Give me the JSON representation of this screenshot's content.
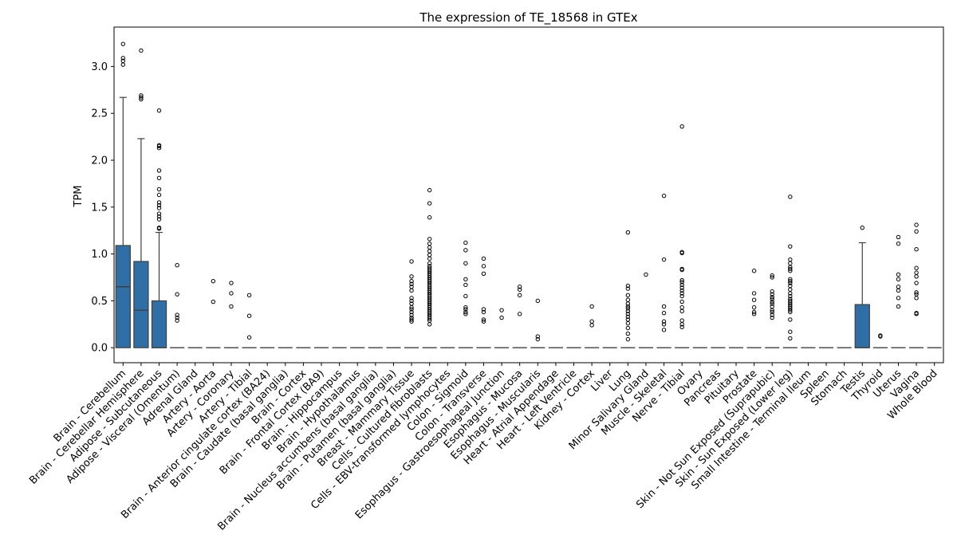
{
  "chart_data": {
    "type": "box",
    "title": "The expression of TE_18568 in GTEx",
    "xlabel": "",
    "ylabel": "TPM",
    "ylim": [
      -0.16,
      3.42
    ],
    "yticks": [
      0.0,
      0.5,
      1.0,
      1.5,
      2.0,
      2.5,
      3.0
    ],
    "ytick_labels": [
      "0.0",
      "0.5",
      "1.0",
      "1.5",
      "2.0",
      "2.5",
      "3.0"
    ],
    "box_color": "#2f6fa5",
    "categories": [
      "Brain - Cerebellum",
      "Brain - Cerebellar Hemisphere",
      "Adipose - Subcutaneous",
      "Adipose - Visceral (Omentum)",
      "Adrenal Gland",
      "Artery - Aorta",
      "Artery - Coronary",
      "Artery - Tibial",
      "Brain - Anterior cingulate cortex (BA24)",
      "Brain - Caudate (basal ganglia)",
      "Brain - Cortex",
      "Brain - Frontal Cortex (BA9)",
      "Brain - Hippocampus",
      "Brain - Hypothalamus",
      "Brain - Nucleus accumbens (basal ganglia)",
      "Brain - Putamen (basal ganglia)",
      "Breast - Mammary Tissue",
      "Cells - Cultured fibroblasts",
      "Cells - EBV-transformed lymphocytes",
      "Colon - Sigmoid",
      "Colon - Transverse",
      "Esophagus - Gastroesophageal Junction",
      "Esophagus - Mucosa",
      "Esophagus - Muscularis",
      "Heart - Atrial Appendage",
      "Heart - Left Ventricle",
      "Kidney - Cortex",
      "Liver",
      "Lung",
      "Minor Salivary Gland",
      "Muscle - Skeletal",
      "Nerve - Tibial",
      "Ovary",
      "Pancreas",
      "Pituitary",
      "Prostate",
      "Skin - Not Sun Exposed (Suprapubic)",
      "Skin - Sun Exposed (Lower leg)",
      "Small Intestine - Terminal Ileum",
      "Spleen",
      "Stomach",
      "Testis",
      "Thyroid",
      "Uterus",
      "Vagina",
      "Whole Blood"
    ],
    "boxes": [
      {
        "q1": 0,
        "median": 0.65,
        "q3": 1.09,
        "whisker_low": 0,
        "whisker_high": 2.67,
        "outliers": [
          3.24,
          3.09,
          3.06,
          3.02
        ]
      },
      {
        "q1": 0,
        "median": 0.4,
        "q3": 0.92,
        "whisker_low": 0,
        "whisker_high": 2.23,
        "outliers": [
          3.17,
          2.69,
          2.67,
          2.65
        ]
      },
      {
        "q1": 0,
        "median": 0,
        "q3": 0.5,
        "whisker_low": 0,
        "whisker_high": 1.23,
        "outliers": [
          2.53,
          2.16,
          2.15,
          2.13,
          1.89,
          1.81,
          1.69,
          1.63,
          1.55,
          1.52,
          1.49,
          1.43,
          1.4,
          1.37,
          1.28,
          1.27
        ]
      },
      {
        "q1": 0,
        "median": 0,
        "q3": 0,
        "whisker_low": 0,
        "whisker_high": 0,
        "outliers": [
          0.88,
          0.57,
          0.35,
          0.32,
          0.29
        ]
      },
      {
        "q1": 0,
        "median": 0,
        "q3": 0,
        "whisker_low": 0,
        "whisker_high": 0,
        "outliers": []
      },
      {
        "q1": 0,
        "median": 0,
        "q3": 0,
        "whisker_low": 0,
        "whisker_high": 0,
        "outliers": [
          0.71,
          0.49
        ]
      },
      {
        "q1": 0,
        "median": 0,
        "q3": 0,
        "whisker_low": 0,
        "whisker_high": 0,
        "outliers": [
          0.69,
          0.58,
          0.44
        ]
      },
      {
        "q1": 0,
        "median": 0,
        "q3": 0,
        "whisker_low": 0,
        "whisker_high": 0,
        "outliers": [
          0.56,
          0.34,
          0.11
        ]
      },
      {
        "q1": 0,
        "median": 0,
        "q3": 0,
        "whisker_low": 0,
        "whisker_high": 0,
        "outliers": []
      },
      {
        "q1": 0,
        "median": 0,
        "q3": 0,
        "whisker_low": 0,
        "whisker_high": 0,
        "outliers": []
      },
      {
        "q1": 0,
        "median": 0,
        "q3": 0,
        "whisker_low": 0,
        "whisker_high": 0,
        "outliers": []
      },
      {
        "q1": 0,
        "median": 0,
        "q3": 0,
        "whisker_low": 0,
        "whisker_high": 0,
        "outliers": []
      },
      {
        "q1": 0,
        "median": 0,
        "q3": 0,
        "whisker_low": 0,
        "whisker_high": 0,
        "outliers": []
      },
      {
        "q1": 0,
        "median": 0,
        "q3": 0,
        "whisker_low": 0,
        "whisker_high": 0,
        "outliers": []
      },
      {
        "q1": 0,
        "median": 0,
        "q3": 0,
        "whisker_low": 0,
        "whisker_high": 0,
        "outliers": []
      },
      {
        "q1": 0,
        "median": 0,
        "q3": 0,
        "whisker_low": 0,
        "whisker_high": 0,
        "outliers": []
      },
      {
        "q1": 0,
        "median": 0,
        "q3": 0,
        "whisker_low": 0,
        "whisker_high": 0,
        "outliers": [
          0.92,
          0.76,
          0.71,
          0.68,
          0.65,
          0.61,
          0.53,
          0.5,
          0.47,
          0.43,
          0.41,
          0.38,
          0.35,
          0.32,
          0.3,
          0.28
        ]
      },
      {
        "q1": 0,
        "median": 0,
        "q3": 0,
        "whisker_low": 0,
        "whisker_high": 0,
        "outliers": [
          1.68,
          1.54,
          1.39,
          1.16,
          1.11,
          1.07,
          1.03,
          0.99,
          0.95,
          0.9,
          0.87,
          0.85,
          0.83,
          0.81,
          0.79,
          0.77,
          0.75,
          0.73,
          0.71,
          0.69,
          0.67,
          0.65,
          0.63,
          0.61,
          0.59,
          0.57,
          0.55,
          0.53,
          0.51,
          0.49,
          0.47,
          0.45,
          0.43,
          0.41,
          0.39,
          0.37,
          0.35,
          0.33,
          0.31,
          0.29,
          0.25
        ]
      },
      {
        "q1": 0,
        "median": 0,
        "q3": 0,
        "whisker_low": 0,
        "whisker_high": 0,
        "outliers": []
      },
      {
        "q1": 0,
        "median": 0,
        "q3": 0,
        "whisker_low": 0,
        "whisker_high": 0,
        "outliers": [
          1.12,
          1.04,
          0.9,
          0.73,
          0.67,
          0.55,
          0.43,
          0.41,
          0.38,
          0.36
        ]
      },
      {
        "q1": 0,
        "median": 0,
        "q3": 0,
        "whisker_low": 0,
        "whisker_high": 0,
        "outliers": [
          0.95,
          0.87,
          0.79,
          0.41,
          0.38,
          0.3,
          0.28
        ]
      },
      {
        "q1": 0,
        "median": 0,
        "q3": 0,
        "whisker_low": 0,
        "whisker_high": 0,
        "outliers": [
          0.4,
          0.32
        ]
      },
      {
        "q1": 0,
        "median": 0,
        "q3": 0,
        "whisker_low": 0,
        "whisker_high": 0,
        "outliers": [
          0.65,
          0.62,
          0.56,
          0.36
        ]
      },
      {
        "q1": 0,
        "median": 0,
        "q3": 0,
        "whisker_low": 0,
        "whisker_high": 0,
        "outliers": [
          0.5,
          0.12,
          0.09
        ]
      },
      {
        "q1": 0,
        "median": 0,
        "q3": 0,
        "whisker_low": 0,
        "whisker_high": 0,
        "outliers": []
      },
      {
        "q1": 0,
        "median": 0,
        "q3": 0,
        "whisker_low": 0,
        "whisker_high": 0,
        "outliers": []
      },
      {
        "q1": 0,
        "median": 0,
        "q3": 0,
        "whisker_low": 0,
        "whisker_high": 0,
        "outliers": [
          0.44,
          0.28,
          0.24
        ]
      },
      {
        "q1": 0,
        "median": 0,
        "q3": 0,
        "whisker_low": 0,
        "whisker_high": 0,
        "outliers": []
      },
      {
        "q1": 0,
        "median": 0,
        "q3": 0,
        "whisker_low": 0,
        "whisker_high": 0,
        "outliers": [
          1.23,
          0.66,
          0.63,
          0.56,
          0.51,
          0.47,
          0.44,
          0.42,
          0.39,
          0.36,
          0.33,
          0.3,
          0.26,
          0.21,
          0.15,
          0.09
        ]
      },
      {
        "q1": 0,
        "median": 0,
        "q3": 0,
        "whisker_low": 0,
        "whisker_high": 0,
        "outliers": [
          0.78
        ]
      },
      {
        "q1": 0,
        "median": 0,
        "q3": 0,
        "whisker_low": 0,
        "whisker_high": 0,
        "outliers": [
          1.62,
          0.94,
          0.44,
          0.37,
          0.28,
          0.25,
          0.19
        ]
      },
      {
        "q1": 0,
        "median": 0,
        "q3": 0,
        "whisker_low": 0,
        "whisker_high": 0,
        "outliers": [
          2.36,
          1.02,
          1.01,
          0.84,
          0.83,
          0.72,
          0.7,
          0.67,
          0.64,
          0.61,
          0.58,
          0.55,
          0.49,
          0.43,
          0.39,
          0.29,
          0.25,
          0.22
        ]
      },
      {
        "q1": 0,
        "median": 0,
        "q3": 0,
        "whisker_low": 0,
        "whisker_high": 0,
        "outliers": []
      },
      {
        "q1": 0,
        "median": 0,
        "q3": 0,
        "whisker_low": 0,
        "whisker_high": 0,
        "outliers": []
      },
      {
        "q1": 0,
        "median": 0,
        "q3": 0,
        "whisker_low": 0,
        "whisker_high": 0,
        "outliers": []
      },
      {
        "q1": 0,
        "median": 0,
        "q3": 0,
        "whisker_low": 0,
        "whisker_high": 0,
        "outliers": [
          0.82,
          0.58,
          0.51,
          0.43,
          0.38,
          0.36
        ]
      },
      {
        "q1": 0,
        "median": 0,
        "q3": 0,
        "whisker_low": 0,
        "whisker_high": 0,
        "outliers": [
          0.77,
          0.75,
          0.6,
          0.57,
          0.54,
          0.52,
          0.49,
          0.47,
          0.44,
          0.4,
          0.38,
          0.35,
          0.32
        ]
      },
      {
        "q1": 0,
        "median": 0,
        "q3": 0,
        "whisker_low": 0,
        "whisker_high": 0,
        "outliers": [
          1.61,
          1.08,
          0.94,
          0.9,
          0.86,
          0.84,
          0.82,
          0.73,
          0.71,
          0.69,
          0.66,
          0.62,
          0.58,
          0.55,
          0.52,
          0.5,
          0.48,
          0.46,
          0.44,
          0.42,
          0.4,
          0.38,
          0.3,
          0.17,
          0.1
        ]
      },
      {
        "q1": 0,
        "median": 0,
        "q3": 0,
        "whisker_low": 0,
        "whisker_high": 0,
        "outliers": []
      },
      {
        "q1": 0,
        "median": 0,
        "q3": 0,
        "whisker_low": 0,
        "whisker_high": 0,
        "outliers": []
      },
      {
        "q1": 0,
        "median": 0,
        "q3": 0,
        "whisker_low": 0,
        "whisker_high": 0,
        "outliers": []
      },
      {
        "q1": 0,
        "median": 0,
        "q3": 0.46,
        "whisker_low": 0,
        "whisker_high": 1.12,
        "outliers": [
          1.28
        ]
      },
      {
        "q1": 0,
        "median": 0,
        "q3": 0,
        "whisker_low": 0,
        "whisker_high": 0,
        "outliers": [
          0.13,
          0.12
        ]
      },
      {
        "q1": 0,
        "median": 0,
        "q3": 0,
        "whisker_low": 0,
        "whisker_high": 0,
        "outliers": [
          1.18,
          1.11,
          0.78,
          0.73,
          0.65,
          0.61,
          0.53,
          0.44
        ]
      },
      {
        "q1": 0,
        "median": 0,
        "q3": 0,
        "whisker_low": 0,
        "whisker_high": 0,
        "outliers": [
          1.31,
          1.24,
          1.05,
          0.85,
          0.8,
          0.76,
          0.69,
          0.59,
          0.57,
          0.53,
          0.37,
          0.36
        ]
      },
      {
        "q1": 0,
        "median": 0,
        "q3": 0,
        "whisker_low": 0,
        "whisker_high": 0,
        "outliers": []
      }
    ]
  }
}
